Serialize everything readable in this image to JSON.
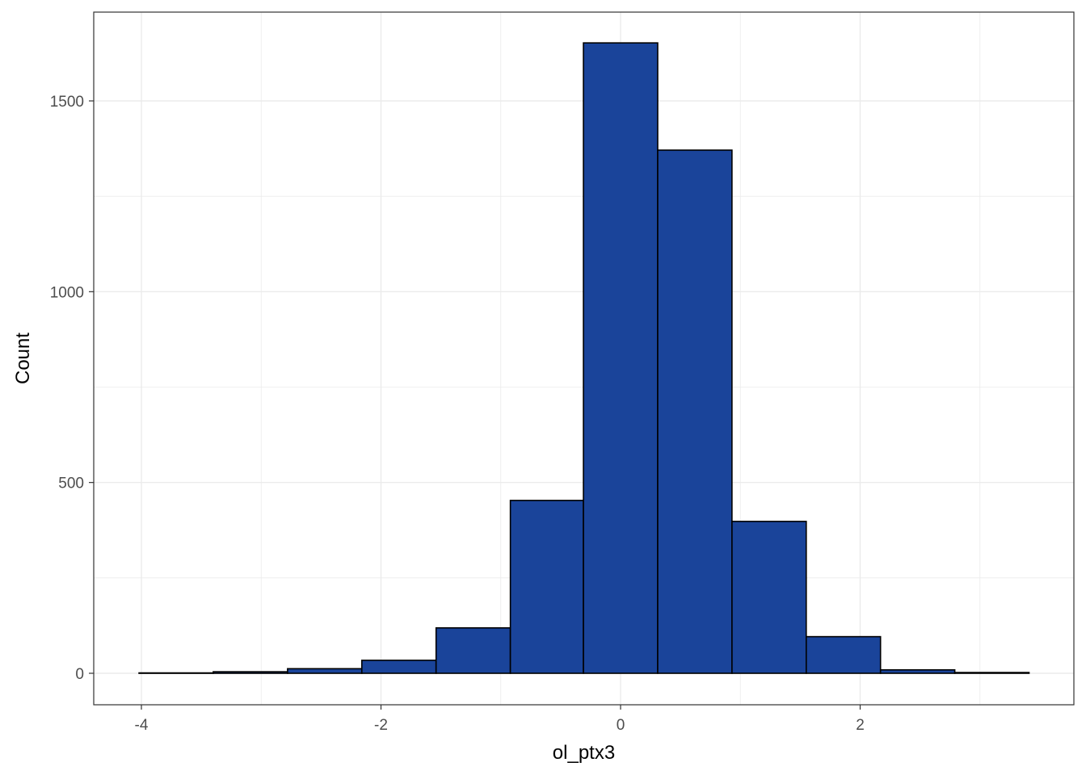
{
  "chart_data": {
    "type": "bar",
    "subtype": "histogram",
    "title": "",
    "xlabel": "ol_ptx3",
    "ylabel": "Count",
    "xlim": [
      -4.0,
      3.42
    ],
    "ylim": [
      0,
      1650
    ],
    "x_ticks": [
      -4,
      -2,
      0,
      2
    ],
    "x_tick_labels": [
      "-4",
      "-2",
      "0",
      "2"
    ],
    "y_ticks": [
      0,
      500,
      1000,
      1500
    ],
    "y_tick_labels": [
      "0",
      "500",
      "1000",
      "1500"
    ],
    "bins": [
      {
        "x0": -4.02,
        "x1": -3.4,
        "count": 1
      },
      {
        "x0": -3.4,
        "x1": -2.78,
        "count": 4
      },
      {
        "x0": -2.78,
        "x1": -2.16,
        "count": 12
      },
      {
        "x0": -2.16,
        "x1": -1.54,
        "count": 34
      },
      {
        "x0": -1.54,
        "x1": -0.92,
        "count": 119
      },
      {
        "x0": -0.92,
        "x1": -0.31,
        "count": 453
      },
      {
        "x0": -0.31,
        "x1": 0.31,
        "count": 1652
      },
      {
        "x0": 0.31,
        "x1": 0.93,
        "count": 1371
      },
      {
        "x0": 0.93,
        "x1": 1.55,
        "count": 398
      },
      {
        "x0": 1.55,
        "x1": 2.17,
        "count": 96
      },
      {
        "x0": 2.17,
        "x1": 2.79,
        "count": 9
      },
      {
        "x0": 2.79,
        "x1": 3.41,
        "count": 2
      }
    ],
    "fill_color": "#1a449a",
    "bar_border_color": "#000000",
    "grid": true,
    "grid_color": "#ebebeb",
    "panel_border_color": "#333333",
    "legend": "none"
  }
}
